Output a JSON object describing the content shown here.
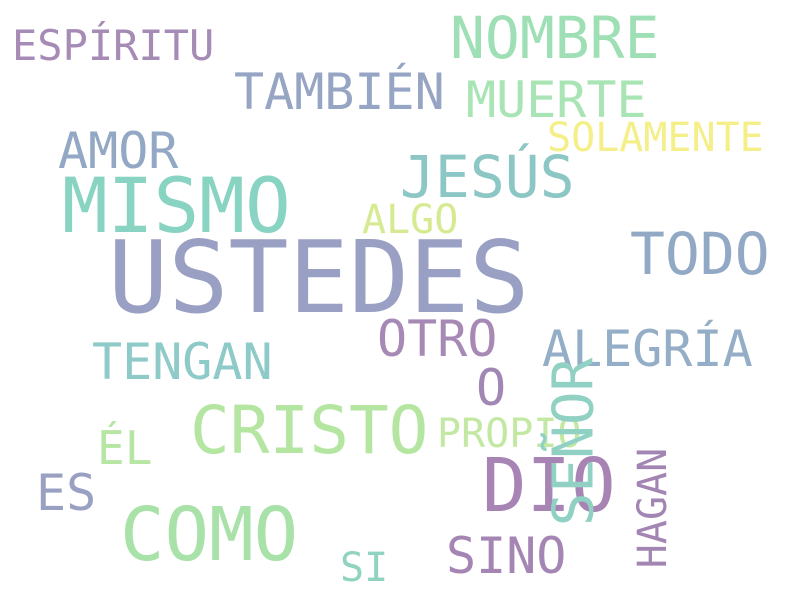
{
  "words": [
    {
      "text": "USTEDES",
      "color": "#9aa0c4"
    },
    {
      "text": "MISMO",
      "color": "#88d3c1"
    },
    {
      "text": "DIO",
      "color": "#a784b4"
    },
    {
      "text": "COMO",
      "color": "#a9e2a8"
    },
    {
      "text": "CRISTO",
      "color": "#b4e6a2"
    },
    {
      "text": "NOMBRE",
      "color": "#9fdfb6"
    },
    {
      "text": "JESÚS",
      "color": "#8dc7c5"
    },
    {
      "text": "TODO",
      "color": "#92a9c5"
    },
    {
      "text": "TAMBIÉN",
      "color": "#97a5c4"
    },
    {
      "text": "MUERTE",
      "color": "#a8e4b4"
    },
    {
      "text": "TENGAN",
      "color": "#8ecac8"
    },
    {
      "text": "ALEGRÍA",
      "color": "#93aec6"
    },
    {
      "text": "AMOR",
      "color": "#93a8c4"
    },
    {
      "text": "OTRO",
      "color": "#a789b5"
    },
    {
      "text": "SINO",
      "color": "#a585b3"
    },
    {
      "text": "ES",
      "color": "#9aa0c2"
    },
    {
      "text": "O",
      "color": "#a187b4"
    },
    {
      "text": "ÉL",
      "color": "#b7e6a4"
    },
    {
      "text": "ESPÍRITU",
      "color": "#a58bb5"
    },
    {
      "text": "SOLAMENTE",
      "color": "#f4ef88"
    },
    {
      "text": "ALGO",
      "color": "#d6ea92"
    },
    {
      "text": "PROPIO",
      "color": "#c3e8a4"
    },
    {
      "text": "SI",
      "color": "#90d3c0"
    },
    {
      "text": "SEÑOR",
      "color": "#90d1c3"
    },
    {
      "text": "HAGAN",
      "color": "#a285b2"
    }
  ]
}
